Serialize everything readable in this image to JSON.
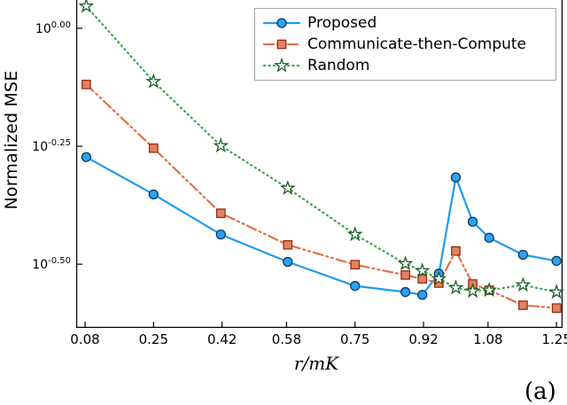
{
  "figure": {
    "caption_fragment": "(a)"
  },
  "chart_data": {
    "type": "line",
    "title": "",
    "xlabel": "r/mK",
    "ylabel": "Normalized MSE",
    "yscale": "log10",
    "grid": false,
    "legend_position": "top-right",
    "xlim": [
      0.058,
      1.265
    ],
    "ylim_log10": [
      -0.635,
      0.06
    ],
    "xticks": [
      0.08,
      0.25,
      0.42,
      0.58,
      0.75,
      0.92,
      1.08,
      1.25
    ],
    "xtick_labels": [
      "0.08",
      "0.25",
      "0.42",
      "0.58",
      "0.75",
      "0.92",
      "1.08",
      "1.25"
    ],
    "ytick_base": "10",
    "yticks_log10": [
      0.0,
      -0.25,
      -0.5
    ],
    "ytick_exponents": [
      "0.00",
      "-0.25",
      "-0.50"
    ],
    "x": [
      0.083,
      0.25,
      0.417,
      0.583,
      0.75,
      0.875,
      0.917,
      0.958,
      1.0,
      1.042,
      1.083,
      1.167,
      1.25
    ],
    "series": [
      {
        "name": "Proposed",
        "color": "#1E9BF0",
        "marker": "circle",
        "marker_fill": "#2BA2F2",
        "marker_stroke": "#0B3A5C",
        "linestyle": "solid",
        "log10_values": [
          -0.273,
          -0.352,
          -0.437,
          -0.495,
          -0.546,
          -0.559,
          -0.565,
          -0.52,
          -0.316,
          -0.41,
          -0.444,
          -0.48,
          -0.493
        ]
      },
      {
        "name": "Communicate-then-Compute",
        "color": "#E36F47",
        "marker": "square",
        "marker_fill": "#E5825E",
        "marker_stroke": "#8F2E14",
        "linestyle": "dashdotdot",
        "log10_values": [
          -0.119,
          -0.254,
          -0.392,
          -0.459,
          -0.501,
          -0.523,
          -0.531,
          -0.54,
          -0.472,
          -0.542,
          -0.555,
          -0.587,
          -0.593
        ]
      },
      {
        "name": "Random",
        "color": "#3DA44D",
        "marker": "star",
        "marker_fill": "#FFFFFF",
        "marker_stroke": "#1C5E26",
        "linestyle": "dot",
        "log10_values": [
          0.047,
          -0.113,
          -0.249,
          -0.339,
          -0.437,
          -0.499,
          -0.514,
          -0.531,
          -0.55,
          -0.557,
          -0.555,
          -0.544,
          -0.559
        ]
      }
    ]
  }
}
